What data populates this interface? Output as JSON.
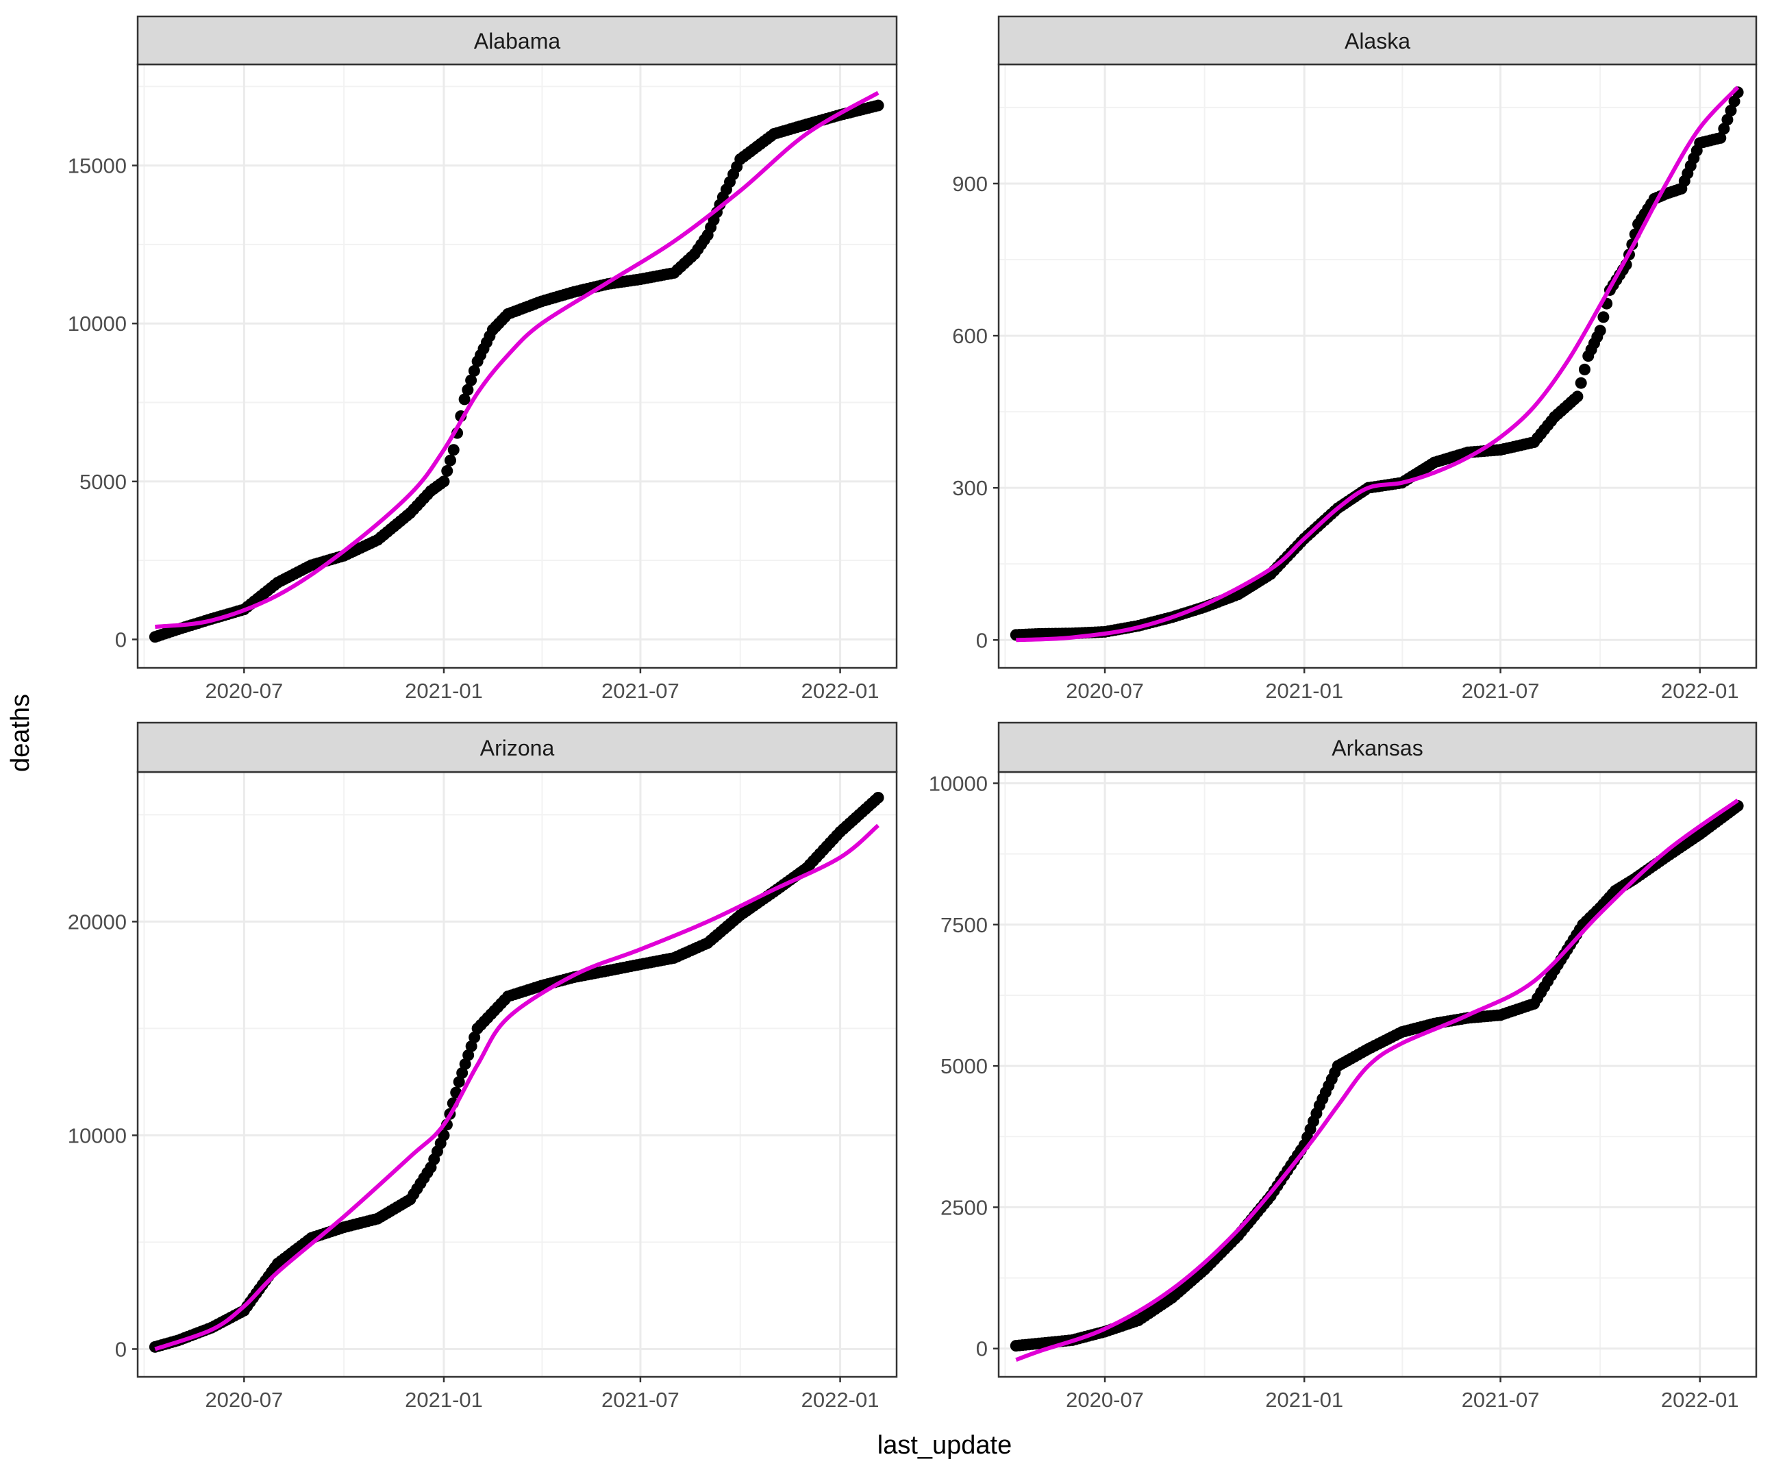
{
  "chart_data": {
    "type": "scatter",
    "xlabel": "last_update",
    "ylabel": "deaths",
    "x_range": [
      "2020-03-25",
      "2022-02-22"
    ],
    "x_ticks": [
      "2020-07-01",
      "2021-01-01",
      "2021-07-01",
      "2022-01-01"
    ],
    "x_tick_labels": [
      "2020-07",
      "2021-01",
      "2021-07",
      "2022-01"
    ],
    "grid": true,
    "legend": "none",
    "colors": {
      "points": "#000000",
      "smooth": "#e000d6",
      "strip": "#d9d9d9",
      "grid": "#ebebeb"
    },
    "series": [
      {
        "kind": "points",
        "mark": "circle"
      },
      {
        "kind": "smooth-line",
        "mark": "line"
      }
    ],
    "panels": [
      {
        "state": "Alabama",
        "ylim": [
          -900,
          18200
        ],
        "y_ticks": [
          0,
          5000,
          10000,
          15000
        ],
        "y_tick_labels": [
          "0",
          "5000",
          "10000",
          "15000"
        ],
        "points": [
          [
            "2020-04-10",
            80
          ],
          [
            "2020-05-01",
            320
          ],
          [
            "2020-06-01",
            650
          ],
          [
            "2020-07-01",
            950
          ],
          [
            "2020-08-01",
            1800
          ],
          [
            "2020-09-01",
            2350
          ],
          [
            "2020-10-01",
            2650
          ],
          [
            "2020-11-01",
            3150
          ],
          [
            "2020-12-01",
            4000
          ],
          [
            "2020-12-20",
            4700
          ],
          [
            "2021-01-01",
            5000
          ],
          [
            "2021-01-10",
            6000
          ],
          [
            "2021-01-20",
            7600
          ],
          [
            "2021-02-01",
            8800
          ],
          [
            "2021-02-15",
            9800
          ],
          [
            "2021-03-01",
            10300
          ],
          [
            "2021-04-01",
            10700
          ],
          [
            "2021-05-01",
            11000
          ],
          [
            "2021-06-01",
            11250
          ],
          [
            "2021-07-01",
            11400
          ],
          [
            "2021-08-01",
            11600
          ],
          [
            "2021-08-20",
            12200
          ],
          [
            "2021-09-01",
            12800
          ],
          [
            "2021-09-15",
            14000
          ],
          [
            "2021-10-01",
            15200
          ],
          [
            "2021-11-01",
            16000
          ],
          [
            "2021-12-01",
            16300
          ],
          [
            "2022-01-01",
            16600
          ],
          [
            "2022-02-05",
            16900
          ]
        ],
        "smooth": [
          [
            "2020-04-10",
            400
          ],
          [
            "2020-06-01",
            600
          ],
          [
            "2020-08-01",
            1400
          ],
          [
            "2020-10-01",
            2800
          ],
          [
            "2020-12-01",
            4600
          ],
          [
            "2021-01-01",
            6000
          ],
          [
            "2021-02-01",
            7800
          ],
          [
            "2021-03-01",
            9000
          ],
          [
            "2021-04-01",
            10000
          ],
          [
            "2021-06-01",
            11300
          ],
          [
            "2021-08-01",
            12600
          ],
          [
            "2021-10-01",
            14200
          ],
          [
            "2021-12-01",
            16000
          ],
          [
            "2022-02-05",
            17300
          ]
        ]
      },
      {
        "state": "Alaska",
        "ylim": [
          -55,
          1135
        ],
        "y_ticks": [
          0,
          300,
          600,
          900
        ],
        "y_tick_labels": [
          "0",
          "300",
          "600",
          "900"
        ],
        "points": [
          [
            "2020-04-10",
            10
          ],
          [
            "2020-05-01",
            12
          ],
          [
            "2020-06-01",
            13
          ],
          [
            "2020-07-01",
            16
          ],
          [
            "2020-08-01",
            28
          ],
          [
            "2020-09-01",
            45
          ],
          [
            "2020-10-01",
            65
          ],
          [
            "2020-11-01",
            90
          ],
          [
            "2020-12-01",
            130
          ],
          [
            "2021-01-01",
            200
          ],
          [
            "2021-02-01",
            260
          ],
          [
            "2021-03-01",
            300
          ],
          [
            "2021-04-01",
            310
          ],
          [
            "2021-05-01",
            350
          ],
          [
            "2021-06-01",
            370
          ],
          [
            "2021-07-01",
            375
          ],
          [
            "2021-08-01",
            390
          ],
          [
            "2021-08-20",
            440
          ],
          [
            "2021-09-10",
            480
          ],
          [
            "2021-09-20",
            560
          ],
          [
            "2021-10-01",
            610
          ],
          [
            "2021-10-10",
            690
          ],
          [
            "2021-10-25",
            740
          ],
          [
            "2021-11-05",
            820
          ],
          [
            "2021-11-20",
            870
          ],
          [
            "2021-12-01",
            880
          ],
          [
            "2021-12-15",
            890
          ],
          [
            "2022-01-01",
            980
          ],
          [
            "2022-01-20",
            990
          ],
          [
            "2022-02-05",
            1080
          ]
        ],
        "smooth": [
          [
            "2020-04-10",
            0
          ],
          [
            "2020-06-01",
            5
          ],
          [
            "2020-08-01",
            25
          ],
          [
            "2020-10-01",
            70
          ],
          [
            "2020-12-01",
            140
          ],
          [
            "2021-01-01",
            200
          ],
          [
            "2021-02-01",
            260
          ],
          [
            "2021-03-01",
            300
          ],
          [
            "2021-04-01",
            310
          ],
          [
            "2021-05-01",
            330
          ],
          [
            "2021-06-01",
            360
          ],
          [
            "2021-07-01",
            400
          ],
          [
            "2021-08-01",
            460
          ],
          [
            "2021-09-01",
            550
          ],
          [
            "2021-10-01",
            660
          ],
          [
            "2021-11-01",
            780
          ],
          [
            "2021-12-01",
            900
          ],
          [
            "2022-01-01",
            1010
          ],
          [
            "2022-02-05",
            1090
          ]
        ]
      },
      {
        "state": "Arizona",
        "ylim": [
          -1300,
          27000
        ],
        "y_ticks": [
          0,
          10000,
          20000
        ],
        "y_tick_labels": [
          "0",
          "10000",
          "20000"
        ],
        "points": [
          [
            "2020-04-10",
            100
          ],
          [
            "2020-05-01",
            400
          ],
          [
            "2020-06-01",
            1000
          ],
          [
            "2020-07-01",
            1800
          ],
          [
            "2020-07-15",
            2800
          ],
          [
            "2020-08-01",
            4000
          ],
          [
            "2020-09-01",
            5200
          ],
          [
            "2020-10-01",
            5700
          ],
          [
            "2020-11-01",
            6100
          ],
          [
            "2020-12-01",
            7000
          ],
          [
            "2020-12-20",
            8500
          ],
          [
            "2021-01-01",
            10000
          ],
          [
            "2021-01-15",
            12500
          ],
          [
            "2021-02-01",
            15000
          ],
          [
            "2021-03-01",
            16500
          ],
          [
            "2021-04-01",
            17000
          ],
          [
            "2021-05-01",
            17400
          ],
          [
            "2021-06-01",
            17700
          ],
          [
            "2021-07-01",
            18000
          ],
          [
            "2021-08-01",
            18300
          ],
          [
            "2021-09-01",
            19000
          ],
          [
            "2021-10-01",
            20300
          ],
          [
            "2021-11-01",
            21400
          ],
          [
            "2021-12-01",
            22500
          ],
          [
            "2022-01-01",
            24200
          ],
          [
            "2022-02-05",
            25800
          ]
        ],
        "smooth": [
          [
            "2020-04-10",
            0
          ],
          [
            "2020-06-01",
            900
          ],
          [
            "2020-07-01",
            2000
          ],
          [
            "2020-08-01",
            3600
          ],
          [
            "2020-10-01",
            6200
          ],
          [
            "2020-12-01",
            9000
          ],
          [
            "2021-01-01",
            10500
          ],
          [
            "2021-02-01",
            13300
          ],
          [
            "2021-03-01",
            15500
          ],
          [
            "2021-05-01",
            17500
          ],
          [
            "2021-07-01",
            18700
          ],
          [
            "2021-09-01",
            20000
          ],
          [
            "2021-11-01",
            21500
          ],
          [
            "2022-01-01",
            23000
          ],
          [
            "2022-02-05",
            24500
          ]
        ]
      },
      {
        "state": "Arkansas",
        "ylim": [
          -500,
          10200
        ],
        "y_ticks": [
          0,
          2500,
          5000,
          7500,
          10000
        ],
        "y_tick_labels": [
          "0",
          "2500",
          "5000",
          "7500",
          "10000"
        ],
        "points": [
          [
            "2020-04-10",
            50
          ],
          [
            "2020-05-01",
            90
          ],
          [
            "2020-06-01",
            150
          ],
          [
            "2020-07-01",
            300
          ],
          [
            "2020-08-01",
            500
          ],
          [
            "2020-09-01",
            900
          ],
          [
            "2020-10-01",
            1400
          ],
          [
            "2020-11-01",
            2000
          ],
          [
            "2020-12-01",
            2700
          ],
          [
            "2021-01-01",
            3600
          ],
          [
            "2021-01-15",
            4300
          ],
          [
            "2021-02-01",
            5000
          ],
          [
            "2021-03-01",
            5300
          ],
          [
            "2021-04-01",
            5600
          ],
          [
            "2021-05-01",
            5750
          ],
          [
            "2021-06-01",
            5850
          ],
          [
            "2021-07-01",
            5900
          ],
          [
            "2021-08-01",
            6100
          ],
          [
            "2021-08-20",
            6700
          ],
          [
            "2021-09-15",
            7500
          ],
          [
            "2021-10-01",
            7800
          ],
          [
            "2021-10-15",
            8100
          ],
          [
            "2021-11-01",
            8300
          ],
          [
            "2021-12-01",
            8700
          ],
          [
            "2022-01-01",
            9100
          ],
          [
            "2022-02-05",
            9600
          ]
        ],
        "smooth": [
          [
            "2020-04-10",
            -200
          ],
          [
            "2020-05-01",
            -50
          ],
          [
            "2020-07-01",
            350
          ],
          [
            "2020-09-01",
            1050
          ],
          [
            "2020-11-01",
            2100
          ],
          [
            "2021-01-01",
            3500
          ],
          [
            "2021-02-01",
            4300
          ],
          [
            "2021-03-01",
            5000
          ],
          [
            "2021-04-01",
            5400
          ],
          [
            "2021-06-01",
            5900
          ],
          [
            "2021-08-01",
            6500
          ],
          [
            "2021-10-01",
            7700
          ],
          [
            "2021-12-01",
            8800
          ],
          [
            "2022-02-05",
            9700
          ]
        ]
      }
    ]
  }
}
